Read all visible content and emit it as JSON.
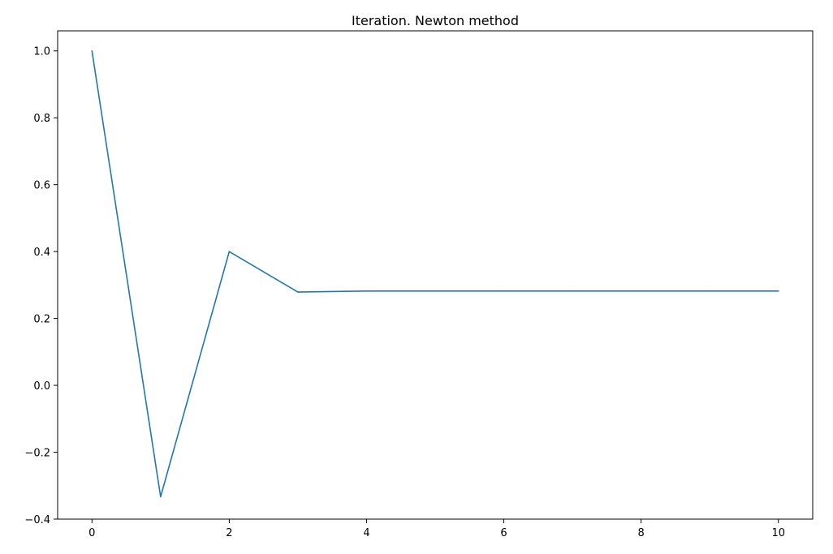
{
  "chart_data": {
    "type": "line",
    "title": "Iteration. Newton method",
    "xlabel": "",
    "ylabel": "",
    "xlim": [
      -0.5,
      10.5
    ],
    "ylim": [
      -0.4,
      1.06
    ],
    "x_ticks": [
      0,
      2,
      4,
      6,
      8,
      10
    ],
    "x_tick_labels": [
      "0",
      "2",
      "4",
      "6",
      "8",
      "10"
    ],
    "y_ticks": [
      -0.4,
      -0.2,
      0.0,
      0.2,
      0.4,
      0.6,
      0.8,
      1.0
    ],
    "y_tick_labels": [
      "−0.4",
      "−0.2",
      "0.0",
      "0.2",
      "0.4",
      "0.6",
      "0.8",
      "1.0"
    ],
    "grid": false,
    "series": [
      {
        "color": "#1f77b4",
        "x": [
          0,
          1,
          2,
          3,
          4,
          5,
          6,
          7,
          8,
          9,
          10
        ],
        "values": [
          1.0,
          -0.333,
          0.4,
          0.279,
          0.282,
          0.282,
          0.282,
          0.282,
          0.282,
          0.282,
          0.282
        ]
      }
    ]
  }
}
